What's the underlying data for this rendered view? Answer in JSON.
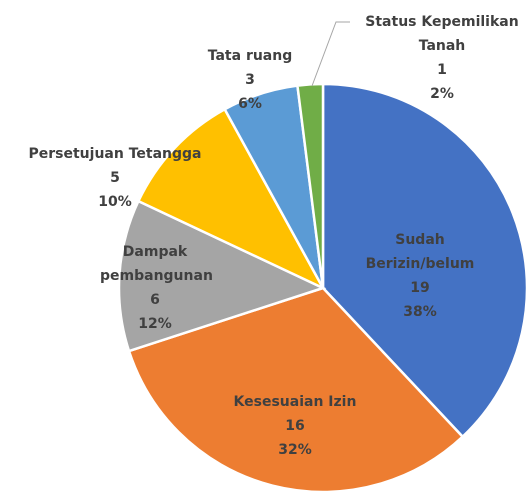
{
  "chart_data": {
    "type": "pie",
    "categories": [
      "Sudah Berizin/belum",
      "Kesesuaian Izin",
      "Dampak pembangunan",
      "Persetujuan Tetangga",
      "Tata ruang",
      "Status Kepemilikan Tanah"
    ],
    "values": [
      19,
      16,
      6,
      5,
      3,
      1
    ],
    "percent_values": [
      38,
      32,
      12,
      10,
      6,
      2
    ],
    "percent_labels": [
      "38%",
      "32%",
      "12%",
      "10%",
      "6%",
      "2%"
    ],
    "colors": [
      "#4472c4",
      "#ed7d31",
      "#a5a5a5",
      "#ffc000",
      "#5b9bd5",
      "#70ad47"
    ]
  }
}
